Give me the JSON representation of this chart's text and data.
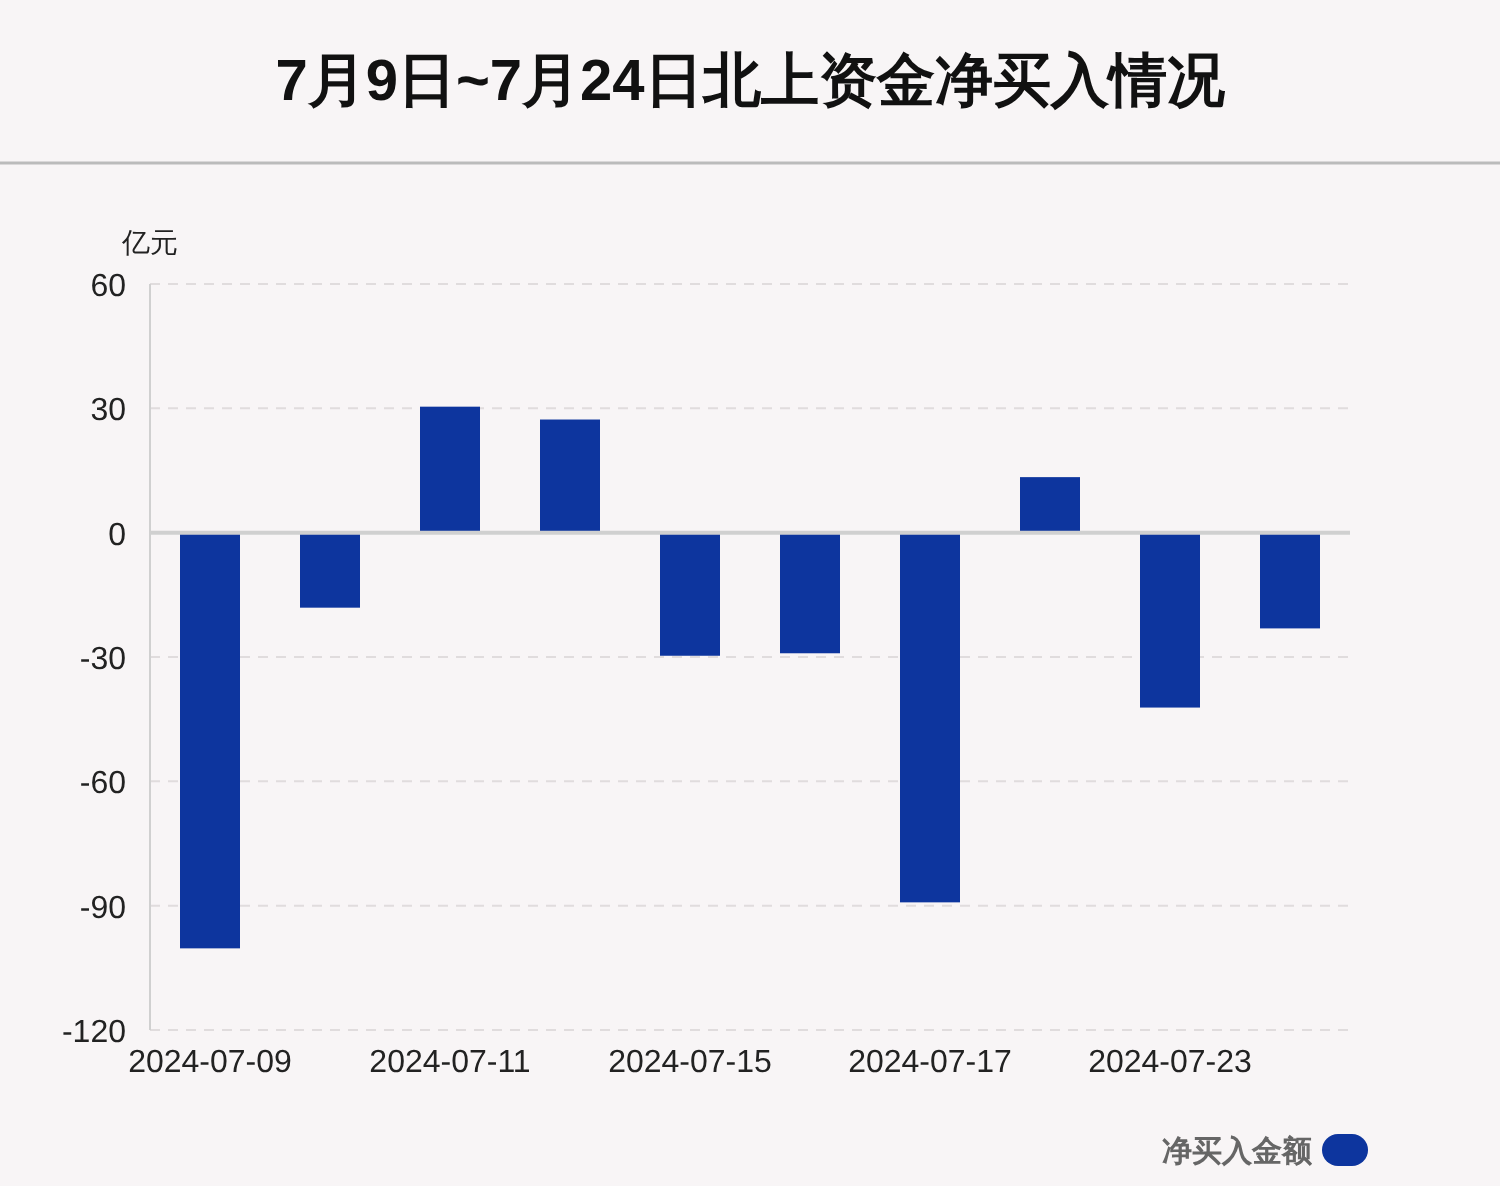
{
  "chart_data": {
    "type": "bar",
    "title": "7月9日~7月24日北上资金净买入情况",
    "ylabel": "亿元",
    "categories": [
      "2024-07-09",
      null,
      "2024-07-11",
      null,
      "2024-07-15",
      null,
      "2024-07-17",
      null,
      "2024-07-23",
      null
    ],
    "series": [
      {
        "name": "净买入金额",
        "color": "#0d359e",
        "values": [
          -100.3,
          -18.1,
          30.4,
          27.3,
          -29.7,
          -29.1,
          -89.2,
          13.4,
          -42.2,
          -23.1
        ]
      }
    ],
    "ylim": [
      -120,
      60
    ],
    "yticks": [
      -120,
      -90,
      -60,
      -30,
      0,
      30,
      60
    ],
    "grid": "y",
    "legend": "bottom right"
  }
}
